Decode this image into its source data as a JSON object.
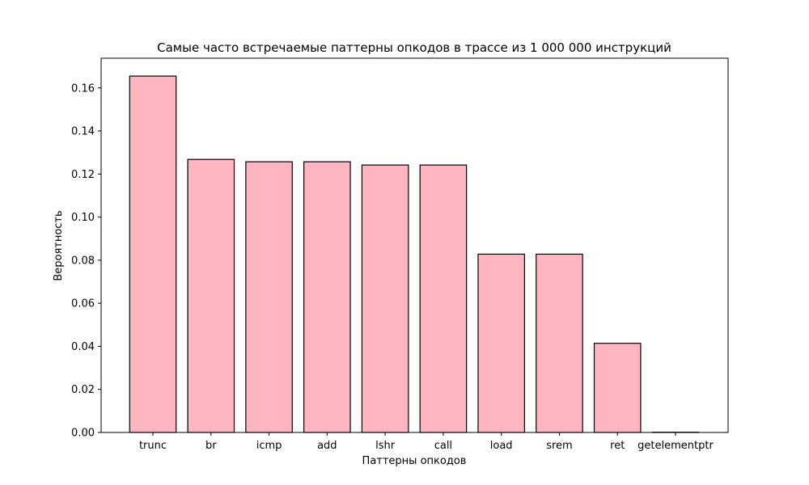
{
  "chart_data": {
    "type": "bar",
    "title": "Самые часто встречаемые паттерны опкодов в трассе из 1 000 000 инструкций",
    "xlabel": "Паттерны опкодов",
    "ylabel": "Вероятность",
    "categories": [
      "trunc",
      "br",
      "icmp",
      "add",
      "lshr",
      "call",
      "load",
      "srem",
      "ret",
      "getelementptr"
    ],
    "values": [
      0.1655,
      0.1268,
      0.1257,
      0.1257,
      0.1242,
      0.1242,
      0.0828,
      0.0828,
      0.0414,
      0.0001
    ],
    "ylim": [
      0,
      0.1738
    ],
    "yticks": [
      0.0,
      0.02,
      0.04,
      0.06,
      0.08,
      0.1,
      0.12,
      0.14,
      0.16
    ],
    "ytick_labels": [
      "0.00",
      "0.02",
      "0.04",
      "0.06",
      "0.08",
      "0.10",
      "0.12",
      "0.14",
      "0.16"
    ],
    "bar_color": "#ffb6c1",
    "bar_edge_color": "#000000",
    "grid": false,
    "legend": "none"
  }
}
